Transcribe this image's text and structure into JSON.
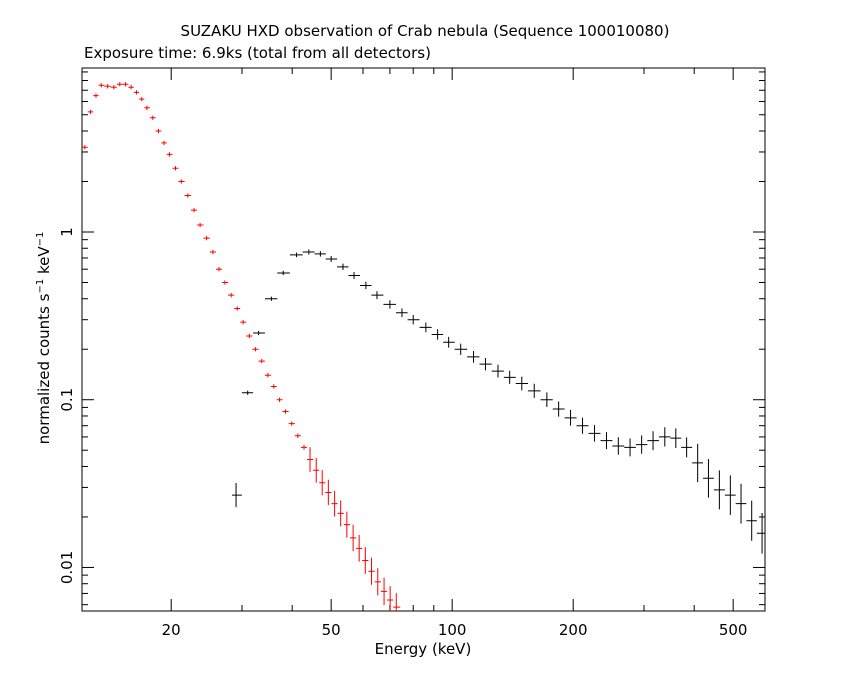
{
  "chart_data": {
    "type": "scatter",
    "title": "SUZAKU HXD observation of Crab nebula (Sequence 100010080)",
    "subtitle": "Exposure time: 6.9ks (total from all detectors)",
    "xlabel": "Energy (keV)",
    "ylabel": {
      "prefix": "normalized counts s",
      "exp1": "−1",
      "mid": " keV",
      "exp2": "−1"
    },
    "x_scale": "log",
    "y_scale": "log",
    "xlim": [
      12,
      600
    ],
    "ylim": [
      0.0055,
      9.5
    ],
    "x_ticks": [
      {
        "value": 20,
        "label": "20"
      },
      {
        "value": 50,
        "label": "50"
      },
      {
        "value": 100,
        "label": "100"
      },
      {
        "value": 200,
        "label": "200"
      },
      {
        "value": 500,
        "label": "500"
      }
    ],
    "y_ticks": [
      {
        "value": 0.01,
        "label": "0.01"
      },
      {
        "value": 0.1,
        "label": "0.1"
      },
      {
        "value": 1,
        "label": "1"
      }
    ],
    "grid": false,
    "series": [
      {
        "color": "#ff0000",
        "points": [
          [
            12.2,
            3.2
          ],
          [
            12.6,
            5.2
          ],
          [
            13.0,
            6.5
          ],
          [
            13.4,
            7.5
          ],
          [
            13.9,
            7.4
          ],
          [
            14.4,
            7.3
          ],
          [
            14.9,
            7.6
          ],
          [
            15.4,
            7.6
          ],
          [
            15.9,
            7.3
          ],
          [
            16.4,
            6.8
          ],
          [
            16.9,
            6.2
          ],
          [
            17.4,
            5.5
          ],
          [
            18.0,
            4.8
          ],
          [
            18.6,
            4.0
          ],
          [
            19.2,
            3.4
          ],
          [
            19.8,
            2.9
          ],
          [
            20.5,
            2.4
          ],
          [
            21.2,
            2.0
          ],
          [
            22.0,
            1.65
          ],
          [
            22.8,
            1.35
          ],
          [
            23.6,
            1.1
          ],
          [
            24.5,
            0.92
          ],
          [
            25.4,
            0.76
          ],
          [
            26.3,
            0.6
          ],
          [
            27.2,
            0.5
          ],
          [
            28.2,
            0.42
          ],
          [
            29.2,
            0.35
          ],
          [
            30.2,
            0.29
          ],
          [
            31.3,
            0.24
          ],
          [
            32.4,
            0.2
          ],
          [
            33.6,
            0.17
          ],
          [
            34.8,
            0.14
          ],
          [
            36.0,
            0.12
          ],
          [
            37.2,
            0.1
          ],
          [
            38.5,
            0.085
          ],
          [
            39.9,
            0.072
          ],
          [
            41.3,
            0.061
          ],
          [
            42.8,
            0.052
          ],
          [
            44.3,
            0.044
          ],
          [
            45.9,
            0.038
          ],
          [
            47.5,
            0.032
          ],
          [
            49.2,
            0.028
          ],
          [
            51.0,
            0.024
          ],
          [
            52.8,
            0.021
          ],
          [
            54.7,
            0.018
          ],
          [
            56.7,
            0.015
          ],
          [
            58.7,
            0.013
          ],
          [
            60.8,
            0.011
          ],
          [
            63.0,
            0.0095
          ],
          [
            65.3,
            0.0082
          ],
          [
            67.7,
            0.0072
          ],
          [
            70.1,
            0.0064
          ],
          [
            72.6,
            0.0058
          ]
        ]
      },
      {
        "color": "#000000",
        "points": [
          [
            29.0,
            0.027
          ],
          [
            31.0,
            0.11
          ],
          [
            33.0,
            0.25
          ],
          [
            35.5,
            0.4
          ],
          [
            38.0,
            0.57
          ],
          [
            41.0,
            0.73
          ],
          [
            44.0,
            0.76
          ],
          [
            47.0,
            0.74
          ],
          [
            50.0,
            0.69
          ],
          [
            53.5,
            0.62
          ],
          [
            57.0,
            0.55
          ],
          [
            61.0,
            0.48
          ],
          [
            65.0,
            0.42
          ],
          [
            70.0,
            0.37
          ],
          [
            75.0,
            0.33
          ],
          [
            80.0,
            0.3
          ],
          [
            86.0,
            0.27
          ],
          [
            92.0,
            0.245
          ],
          [
            98.0,
            0.22
          ],
          [
            105.0,
            0.2
          ],
          [
            113.0,
            0.18
          ],
          [
            121.0,
            0.163
          ],
          [
            130.0,
            0.148
          ],
          [
            139.0,
            0.136
          ],
          [
            149.0,
            0.125
          ],
          [
            160.0,
            0.113
          ],
          [
            172.0,
            0.1
          ],
          [
            184.0,
            0.088
          ],
          [
            197.0,
            0.078
          ],
          [
            211.0,
            0.07
          ],
          [
            226.0,
            0.063
          ],
          [
            242.0,
            0.057
          ],
          [
            259.0,
            0.053
          ],
          [
            277.0,
            0.052
          ],
          [
            296.0,
            0.054
          ],
          [
            316.0,
            0.057
          ],
          [
            338.0,
            0.06
          ],
          [
            360.0,
            0.059
          ],
          [
            383.0,
            0.052
          ],
          [
            408.0,
            0.042
          ],
          [
            434.0,
            0.034
          ],
          [
            462.0,
            0.029
          ],
          [
            492.0,
            0.027
          ],
          [
            523.0,
            0.024
          ],
          [
            556.0,
            0.019
          ],
          [
            590.0,
            0.016
          ]
        ]
      }
    ]
  }
}
